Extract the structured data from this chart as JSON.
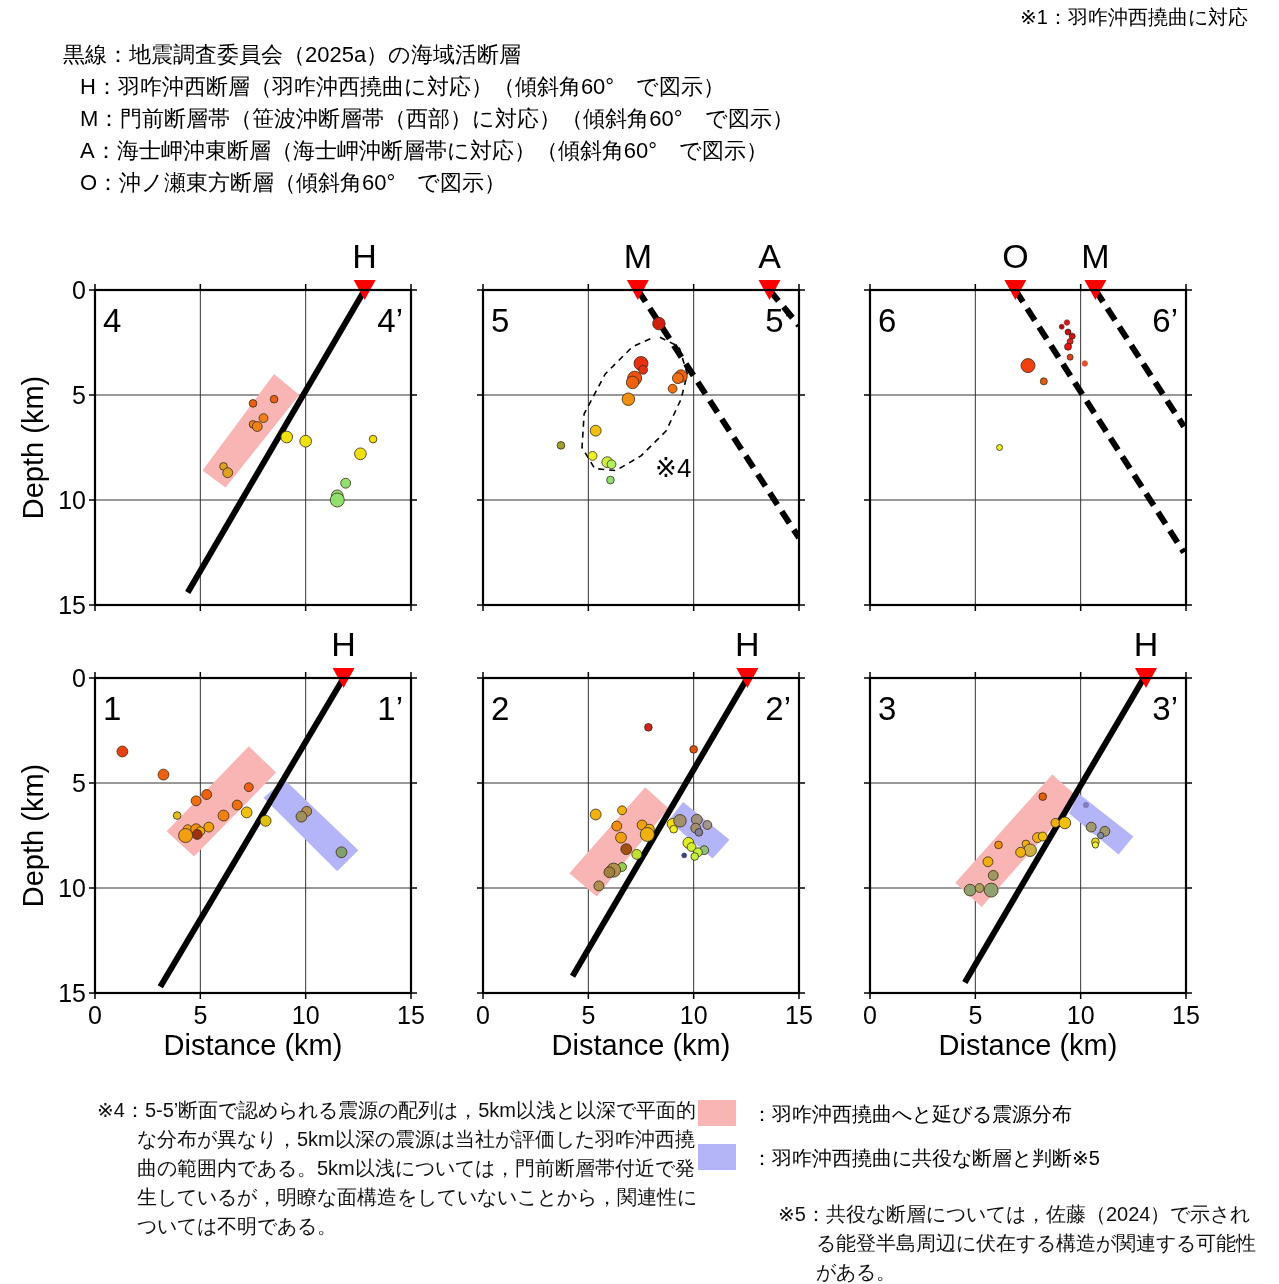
{
  "chart_data": [
    {
      "type": "other",
      "title": "黒線：地震調査委員会（2025a）の海域活断層",
      "annotations": [
        "※1：羽咋沖西撓曲に対応",
        "H：羽咋沖西断層（羽咋沖西撓曲に対応）（傾斜角60°　で図示）",
        "M：門前断層帯（笹波沖断層帯（西部）に対応）（傾斜角60°　で図示）",
        "A：海士岬沖東断層（海士岬沖断層帯に対応）（傾斜角60°　で図示）",
        "O：沖ノ瀬東方断層（傾斜角60°　で図示）"
      ]
    },
    {
      "type": "bubble",
      "xlim": [
        0,
        15
      ],
      "ylim": [
        15,
        0
      ],
      "xticks": [
        0,
        5,
        10,
        15
      ],
      "yticks": [
        0,
        5,
        10,
        15
      ],
      "grid": true,
      "tick_labels": "y",
      "ylabel": "Depth (km)",
      "annotations": [
        "4",
        "4’"
      ],
      "series": [
        {
          "type": "area",
          "name": "：羽咋沖西撓曲へと延びる震源分布",
          "color": "#f9b4b4",
          "x": [
            8.5,
            9.7,
            6.2,
            5.1
          ],
          "values": [
            4.0,
            5.0,
            9.4,
            8.6
          ]
        },
        {
          "type": "line",
          "color": "#000000",
          "line_style": "solid",
          "x": [
            12.8,
            4.4
          ],
          "values": [
            0,
            14.4
          ]
        },
        {
          "x": [
            7.5,
            8.5,
            8.0,
            7.5,
            7.7,
            9.1,
            10.0,
            13.2,
            12.6,
            6.1,
            6.3,
            11.9,
            11.5,
            11.5
          ],
          "values": [
            5.4,
            5.2,
            6.1,
            6.4,
            6.5,
            7.0,
            7.2,
            7.1,
            7.8,
            8.4,
            8.7,
            9.2,
            9.8,
            10.0
          ],
          "sizes": [
            0.3,
            0.3,
            0.4,
            0.3,
            0.5,
            0.7,
            0.7,
            0.3,
            0.7,
            0.3,
            0.5,
            0.5,
            0.7,
            1
          ],
          "colors": [
            "#e86018",
            "#e86018",
            "#f08018",
            "#f08018",
            "#f08018",
            "#f0e010",
            "#f0e010",
            "#f0e010",
            "#f0e010",
            "#e0a020",
            "#e0a020",
            "#90e070",
            "#90e070",
            "#90e070"
          ]
        },
        {
          "type": "scatter",
          "marker": "triangle",
          "name": "H",
          "color": "#ff0000",
          "x": [
            12.8
          ],
          "values": [
            0
          ]
        }
      ]
    },
    {
      "type": "bubble",
      "xlim": [
        0,
        15
      ],
      "ylim": [
        15,
        0
      ],
      "xticks": [
        0,
        5,
        10,
        15
      ],
      "yticks": [
        0,
        5,
        10,
        15
      ],
      "grid": true,
      "tick_labels": false,
      "annotations": [
        "5",
        "5’",
        "※4"
      ],
      "series": [
        {
          "type": "line",
          "color": "#000000",
          "line_style": "dashed",
          "x": [
            7.35,
            15.0
          ],
          "values": [
            0,
            11.8
          ]
        },
        {
          "type": "line",
          "color": "#000000",
          "line_style": "dashed",
          "x": [
            13.6,
            15.0
          ],
          "values": [
            0,
            1.7
          ]
        },
        {
          "type": "line",
          "color": "#000000",
          "line_style": "dotted",
          "x": [
            8.4,
            9.3,
            9.7,
            9.4,
            8.7,
            7.5,
            6.3,
            5.3,
            4.7,
            4.8,
            5.8,
            7.1,
            8.0
          ],
          "values": [
            2.25,
            2.7,
            4.0,
            5.2,
            6.7,
            7.9,
            8.6,
            8.5,
            7.5,
            5.9,
            4.0,
            2.7,
            2.3
          ]
        },
        {
          "x": [
            8.35,
            7.5,
            7.6,
            7.2,
            7.1,
            9.4,
            9.25,
            9.0,
            6.9,
            5.35,
            3.7,
            5.2,
            5.9,
            6.1,
            6.05
          ],
          "values": [
            1.6,
            3.5,
            3.8,
            4.2,
            4.4,
            4.1,
            4.2,
            4.7,
            5.2,
            6.7,
            7.4,
            7.9,
            8.2,
            8.3,
            9.05
          ],
          "sizes": [
            0.8,
            1,
            0.4,
            1,
            0.8,
            0.8,
            0.6,
            0.4,
            0.8,
            0.6,
            0.3,
            0.4,
            0.6,
            0.4,
            0.3
          ],
          "colors": [
            "#d02010",
            "#e83010",
            "#e03010",
            "#f05010",
            "#f06010",
            "#f06010",
            "#f07010",
            "#f07010",
            "#f09010",
            "#f0c010",
            "#a0a030",
            "#f0f020",
            "#d0f040",
            "#b0f060",
            "#90e070"
          ]
        },
        {
          "type": "scatter",
          "marker": "triangle",
          "name": "M",
          "color": "#ff0000",
          "x": [
            7.35
          ],
          "values": [
            0
          ]
        },
        {
          "type": "scatter",
          "marker": "triangle",
          "name": "A",
          "color": "#ff0000",
          "x": [
            13.6
          ],
          "values": [
            0
          ]
        }
      ]
    },
    {
      "type": "bubble",
      "xlim": [
        0,
        15
      ],
      "ylim": [
        15,
        0
      ],
      "xticks": [
        0,
        5,
        10,
        15
      ],
      "yticks": [
        0,
        5,
        10,
        15
      ],
      "grid": true,
      "tick_labels": false,
      "annotations": [
        "6",
        "6’"
      ],
      "series": [
        {
          "type": "line",
          "color": "#000000",
          "line_style": "dashed",
          "x": [
            6.9,
            14.9
          ],
          "values": [
            0,
            12.5
          ]
        },
        {
          "type": "line",
          "color": "#000000",
          "line_style": "dashed",
          "x": [
            10.7,
            14.9
          ],
          "values": [
            0,
            6.5
          ]
        },
        {
          "x": [
            9.35,
            9.1,
            9.4,
            9.6,
            9.5,
            9.4,
            9.5,
            10.2,
            7.5,
            8.25,
            6.15
          ],
          "values": [
            1.55,
            1.75,
            2.0,
            2.2,
            2.45,
            2.7,
            3.2,
            3.5,
            3.6,
            4.35,
            7.5
          ],
          "sizes": [
            0.15,
            0.12,
            0.18,
            0.18,
            0.18,
            0.25,
            0.18,
            0.15,
            1,
            0.25,
            0.18
          ],
          "colors": [
            "#c02020",
            "#a01010",
            "#c01010",
            "#d01010",
            "#e02020",
            "#f01010",
            "#e04020",
            "#e05030",
            "#f04010",
            "#e06010",
            "#f0f020"
          ]
        },
        {
          "type": "scatter",
          "marker": "triangle",
          "name": "O",
          "color": "#ff0000",
          "x": [
            6.9
          ],
          "values": [
            0
          ]
        },
        {
          "type": "scatter",
          "marker": "triangle",
          "name": "M",
          "color": "#ff0000",
          "x": [
            10.7
          ],
          "values": [
            0
          ]
        }
      ]
    },
    {
      "type": "bubble",
      "xlim": [
        0,
        15
      ],
      "ylim": [
        15,
        0
      ],
      "xticks": [
        0,
        5,
        10,
        15
      ],
      "yticks": [
        0,
        5,
        10,
        15
      ],
      "grid": true,
      "xlabel": "Distance (km)",
      "ylabel": "Depth (km)",
      "annotations": [
        "1",
        "1’"
      ],
      "series": [
        {
          "type": "area",
          "name": "：羽咋沖西撓曲へと延びる震源分布",
          "color": "#f9b4b4",
          "x": [
            7.3,
            8.6,
            4.7,
            3.4
          ],
          "values": [
            3.25,
            4.5,
            8.5,
            7.3
          ]
        },
        {
          "type": "area",
          "name": "：羽咋沖西撓曲に共役な断層と判断※5",
          "color": "#b4b4f8",
          "x": [
            9.0,
            12.5,
            11.5,
            8.0
          ],
          "values": [
            4.85,
            8.2,
            9.2,
            5.7
          ]
        },
        {
          "type": "line",
          "color": "#000000",
          "line_style": "solid",
          "x": [
            11.8,
            3.1
          ],
          "values": [
            0,
            14.7
          ]
        },
        {
          "x": [
            1.3,
            3.25,
            7.3,
            5.3,
            4.8,
            6.75,
            6.1,
            3.9,
            7.2,
            8.1,
            5.4,
            4.4,
            4.8,
            5.0,
            4.85,
            4.3,
            10.05,
            9.8,
            11.7
          ],
          "values": [
            3.5,
            4.6,
            5.2,
            5.55,
            5.85,
            6.05,
            6.55,
            6.55,
            6.4,
            6.8,
            7.1,
            7.2,
            7.2,
            7.3,
            7.45,
            7.5,
            6.35,
            6.6,
            8.3
          ],
          "sizes": [
            0.6,
            0.6,
            0.4,
            0.5,
            0.5,
            0.5,
            0.6,
            0.3,
            0.6,
            0.6,
            0.5,
            0.4,
            0.6,
            0.4,
            0.5,
            1,
            0.5,
            0.6,
            0.6
          ],
          "colors": [
            "#e84010",
            "#f06010",
            "#f06010",
            "#f06010",
            "#f07010",
            "#f07010",
            "#f08010",
            "#e0c020",
            "#f0c010",
            "#e0c010",
            "#f0a010",
            "#f0a010",
            "#f09010",
            "#f0b010",
            "#a03010",
            "#f0a010",
            "#b09050",
            "#a09060",
            "#80a070"
          ]
        },
        {
          "type": "scatter",
          "marker": "triangle",
          "name": "H",
          "color": "#ff0000",
          "x": [
            11.8
          ],
          "values": [
            0
          ]
        }
      ]
    },
    {
      "type": "bubble",
      "xlim": [
        0,
        15
      ],
      "ylim": [
        15,
        0
      ],
      "xticks": [
        0,
        5,
        10,
        15
      ],
      "yticks": [
        0,
        5,
        10,
        15
      ],
      "grid": true,
      "tick_labels": "x",
      "xlabel": "Distance (km)",
      "annotations": [
        "2",
        "2’"
      ],
      "series": [
        {
          "type": "area",
          "name": "：羽咋沖西撓曲へと延びる震源分布",
          "color": "#f9b4b4",
          "x": [
            7.7,
            8.8,
            5.4,
            4.1
          ],
          "values": [
            5.2,
            6.2,
            10.4,
            9.3
          ]
        },
        {
          "type": "area",
          "name": "：羽咋沖西撓曲に共役な断層と判断※5",
          "color": "#b4b4f8",
          "x": [
            9.5,
            11.7,
            10.9,
            8.8
          ],
          "values": [
            5.9,
            7.7,
            8.6,
            6.8
          ]
        },
        {
          "type": "line",
          "color": "#000000",
          "line_style": "solid",
          "x": [
            12.55,
            4.25
          ],
          "values": [
            0,
            14.2
          ]
        },
        {
          "x": [
            7.85,
            10.0,
            5.35,
            6.6,
            6.35,
            7.55,
            7.9,
            6.55,
            7.8,
            6.8,
            7.3,
            6.6,
            6.2,
            6.0,
            5.5,
            9.0,
            9.35,
            9.05,
            10.15,
            10.1,
            10.25,
            10.65,
            9.75,
            9.9,
            10.5,
            10.2,
            10.05,
            9.55
          ],
          "values": [
            2.35,
            3.4,
            6.5,
            6.3,
            7.05,
            7.0,
            7.2,
            7.6,
            7.45,
            8.15,
            8.4,
            9.0,
            9.15,
            9.25,
            9.9,
            6.95,
            6.8,
            7.2,
            6.75,
            7.15,
            7.35,
            7.0,
            7.85,
            8.05,
            8.2,
            8.3,
            8.5,
            8.45
          ],
          "sizes": [
            0.3,
            0.3,
            0.6,
            0.4,
            0.5,
            0.5,
            0.5,
            0.6,
            1,
            0.6,
            0.5,
            0.4,
            1,
            0.6,
            0.5,
            0.6,
            0.8,
            0.3,
            0.6,
            0.5,
            0.3,
            0.4,
            0.6,
            0.4,
            0.4,
            0.4,
            0.3,
            0.12
          ],
          "colors": [
            "#d02020",
            "#e05010",
            "#f0b010",
            "#f0b010",
            "#f09010",
            "#f0a010",
            "#f0b010",
            "#f0a010",
            "#f0b010",
            "#a05010",
            "#c0e030",
            "#90d050",
            "#b09050",
            "#a08040",
            "#b09050",
            "#f0e010",
            "#a09070",
            "#f0f020",
            "#a09080",
            "#a09070",
            "#8080a0",
            "#a09890",
            "#e0f020",
            "#d0f030",
            "#90c080",
            "#c0f040",
            "#c0f040",
            "#404080"
          ]
        },
        {
          "type": "scatter",
          "marker": "triangle",
          "name": "H",
          "color": "#ff0000",
          "x": [
            12.55
          ],
          "values": [
            0
          ]
        }
      ]
    },
    {
      "type": "bubble",
      "xlim": [
        0,
        15
      ],
      "ylim": [
        15,
        0
      ],
      "xticks": [
        0,
        5,
        10,
        15
      ],
      "yticks": [
        0,
        5,
        10,
        15
      ],
      "grid": true,
      "tick_labels": "x",
      "xlabel": "Distance (km)",
      "annotations": [
        "3",
        "3’"
      ],
      "series": [
        {
          "type": "area",
          "name": "：羽咋沖西撓曲へと延びる震源分布",
          "color": "#f9b4b4",
          "x": [
            8.65,
            9.9,
            5.3,
            4.05
          ],
          "values": [
            4.6,
            5.7,
            10.9,
            9.75
          ]
        },
        {
          "type": "area",
          "name": "：羽咋沖西撓曲に共役な断層と判断※5",
          "color": "#b4b4f8",
          "x": [
            9.9,
            12.5,
            11.8,
            9.45
          ],
          "values": [
            5.5,
            7.55,
            8.4,
            6.45
          ]
        },
        {
          "type": "line",
          "color": "#000000",
          "line_style": "solid",
          "x": [
            13.0,
            4.5
          ],
          "values": [
            0,
            14.5
          ]
        },
        {
          "x": [
            8.2,
            10.25,
            8.8,
            9.25,
            10.5,
            11.15,
            10.95,
            10.7,
            10.7,
            7.95,
            8.2,
            7.4,
            6.1,
            7.6,
            7.15,
            5.6,
            5.85,
            4.75,
            5.2,
            5.75
          ],
          "values": [
            5.65,
            6.05,
            6.9,
            6.9,
            7.1,
            7.3,
            7.5,
            7.8,
            7.95,
            7.6,
            7.55,
            7.9,
            7.95,
            8.2,
            8.3,
            8.75,
            9.4,
            10.1,
            10.0,
            10.1
          ],
          "sizes": [
            0.3,
            0.15,
            0.4,
            0.7,
            0.5,
            0.5,
            0.2,
            0.3,
            0.2,
            0.5,
            0.4,
            0.3,
            0.3,
            0.8,
            0.5,
            0.5,
            0.5,
            0.7,
            0.4,
            1
          ],
          "colors": [
            "#e06010",
            "#8080c0",
            "#f0b010",
            "#f0c010",
            "#a09870",
            "#a09870",
            "#8090a0",
            "#e0e020",
            "#f0f040",
            "#f0b010",
            "#f0c010",
            "#f0b010",
            "#f09010",
            "#d0b040",
            "#f0b010",
            "#f0b010",
            "#a09860",
            "#90a070",
            "#b0a060",
            "#90a070"
          ]
        },
        {
          "type": "scatter",
          "marker": "triangle",
          "name": "H",
          "color": "#ff0000",
          "x": [
            13.1
          ],
          "values": [
            0
          ]
        }
      ]
    },
    {
      "type": "other",
      "annotations": [
        "※4：5-5’断面で認められる震源の配列は，5km以浅と以深で平面的な分布が異なり，5km以深の震源は当社が評価した羽咋沖西撓曲の範囲内である。5km以浅については，門前断層帯付近で発生しているが，明瞭な面構造をしていないことから，関連性については不明である。",
        "※5：共役な断層については，佐藤（2024）で示される能登半島周辺に伏在する構造が関連する可能性がある。"
      ]
    }
  ]
}
